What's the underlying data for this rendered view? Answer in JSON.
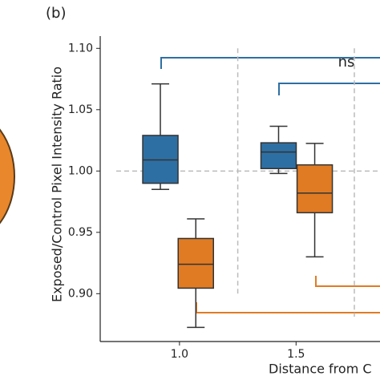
{
  "chart_data": {
    "type": "box",
    "panel_label": "(b)",
    "annotation": "ns",
    "ylabel": "Exposed/Control Pixel Intensity Ratio",
    "xlabel": "Distance from C",
    "xlim": [
      0.66,
      1.86
    ],
    "ylim": [
      0.861,
      1.11
    ],
    "xticks": [
      {
        "value": 1.0,
        "label": "1.0"
      },
      {
        "value": 1.5,
        "label": "1.5"
      }
    ],
    "yticks": [
      {
        "value": 0.9,
        "label": "0.90"
      },
      {
        "value": 0.95,
        "label": "0.95"
      },
      {
        "value": 1.0,
        "label": "1.00"
      },
      {
        "value": 1.05,
        "label": "1.05"
      },
      {
        "value": 1.1,
        "label": "1.10"
      }
    ],
    "reference_line": 1.0,
    "vlines": [
      1.25,
      1.75
    ],
    "series": [
      {
        "color": "#2e6fa3",
        "x": [
          0.918,
          1.425
        ],
        "whislo": [
          0.985,
          0.998
        ],
        "q1": [
          0.99,
          1.002
        ],
        "med": [
          1.009,
          1.0155
        ],
        "q3": [
          1.029,
          1.023
        ],
        "whishi": [
          1.071,
          1.0365
        ]
      },
      {
        "color": "#e07b24",
        "x": [
          1.07,
          1.58
        ],
        "whislo": [
          0.8725,
          0.93
        ],
        "q1": [
          0.9045,
          0.966
        ],
        "med": [
          0.924,
          0.982
        ],
        "q3": [
          0.945,
          1.005
        ],
        "whishi": [
          0.961,
          1.0225
        ]
      }
    ]
  }
}
